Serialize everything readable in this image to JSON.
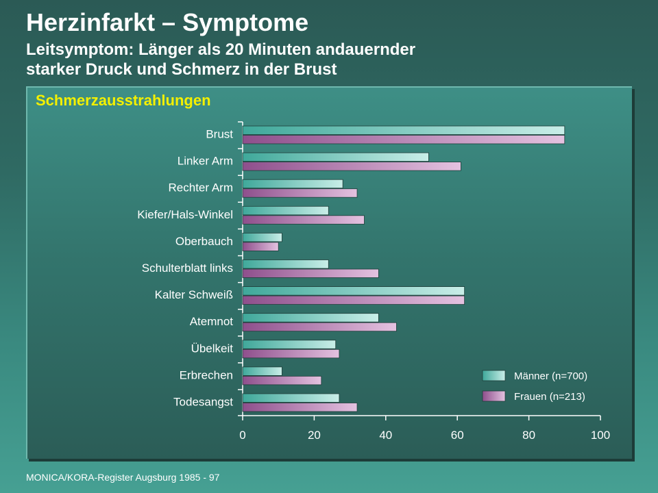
{
  "slide": {
    "title": "Herzinfarkt – Symptome",
    "subtitle_line1": "Leitsymptom: Länger als 20 Minuten andauernder",
    "subtitle_line2": "starker Druck und Schmerz in der Brust",
    "footer": "MONICA/KORA-Register Augsburg 1985 - 97"
  },
  "colors": {
    "men_dark": "#3fa89a",
    "men_light": "#c9eee8",
    "women_dark": "#8e4f8c",
    "women_light": "#e4c2e0",
    "bar_border": "#1e3d39",
    "axis": "#ffffff"
  },
  "chart_data": {
    "type": "bar",
    "orientation": "horizontal",
    "title": "Schmerzausstrahlungen",
    "categories": [
      "Brust",
      "Linker Arm",
      "Rechter Arm",
      "Kiefer/Hals-Winkel",
      "Oberbauch",
      "Schulterblatt links",
      "Kalter Schweiß",
      "Atemnot",
      "Übelkeit",
      "Erbrechen",
      "Todesangst"
    ],
    "series": [
      {
        "name": "Männer (n=700)",
        "values": [
          90,
          52,
          28,
          24,
          11,
          24,
          62,
          38,
          26,
          11,
          27
        ]
      },
      {
        "name": "Frauen (n=213)",
        "values": [
          90,
          61,
          32,
          34,
          10,
          38,
          62,
          43,
          27,
          22,
          32
        ]
      }
    ],
    "xlim": [
      0,
      100
    ],
    "xticks": [
      0,
      20,
      40,
      60,
      80,
      100
    ],
    "xlabel": "",
    "ylabel": "",
    "grid": false,
    "legend": "bottom-right"
  }
}
